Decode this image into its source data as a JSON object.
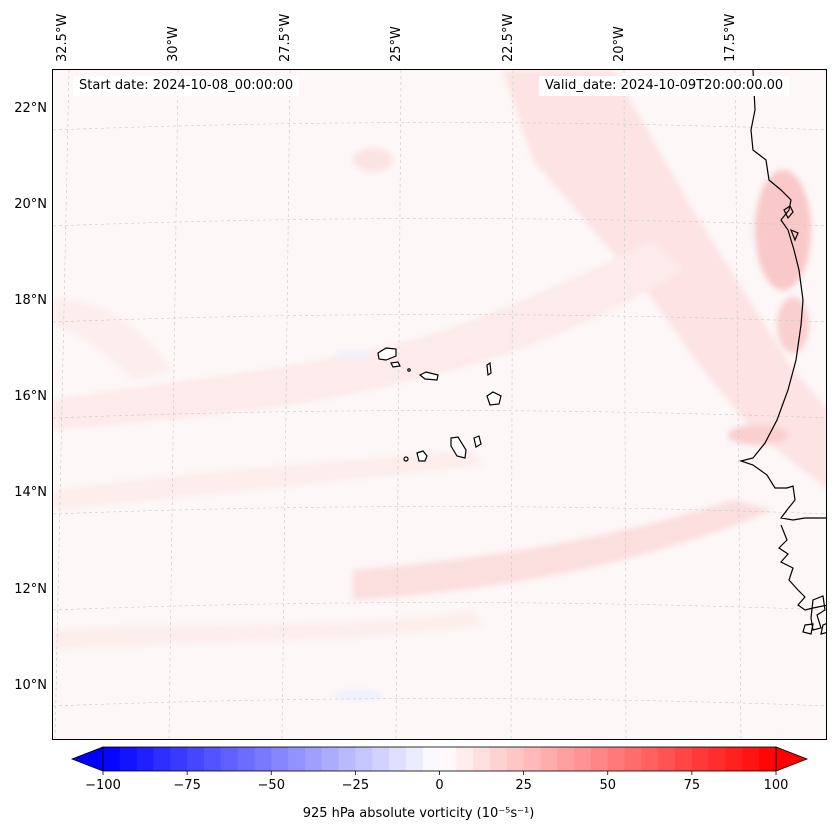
{
  "header": {
    "start_label": "Start date: 2024-10-08_00:00:00",
    "valid_label": "Valid_date: 2024-10-09T20:00:00.00"
  },
  "axes": {
    "lon_labels": [
      "32.5°W",
      "30°W",
      "27.5°W",
      "25°W",
      "22.5°W",
      "20°W",
      "17.5°W"
    ],
    "lat_labels": [
      "22°N",
      "20°N",
      "18°N",
      "16°N",
      "14°N",
      "12°N",
      "10°N"
    ]
  },
  "colorbar": {
    "label_text": "925 hPa absolute vorticity",
    "label_units": "(10⁻⁵s⁻¹)",
    "tick_labels": [
      "−100",
      "−75",
      "−50",
      "−25",
      "0",
      "25",
      "50",
      "75",
      "100"
    ],
    "min": -100,
    "max": 100,
    "colors": {
      "negative_end": "#0000ff",
      "zero": "#ffffff",
      "positive_end": "#ff0000"
    }
  },
  "map": {
    "field": "925 hPa absolute vorticity",
    "features": [
      "coastline-africa",
      "cape-verde-islands",
      "gridlines"
    ],
    "background_color": "#fdf7f7"
  }
}
